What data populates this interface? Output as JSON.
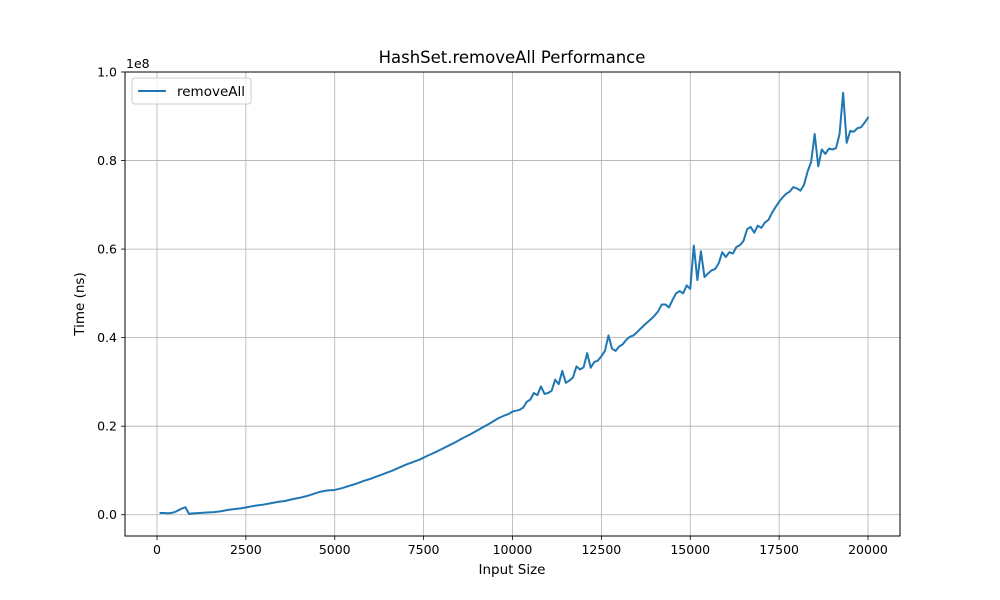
{
  "chart_data": {
    "type": "line",
    "title": "HashSet.removeAll Performance",
    "xlabel": "Input Size",
    "ylabel": "Time (ns)",
    "y_offset_text": "1e8",
    "xlim": [
      -900,
      20900
    ],
    "ylim": [
      -4800000,
      100000000
    ],
    "xticks": [
      0,
      2500,
      5000,
      7500,
      10000,
      12500,
      15000,
      17500,
      20000
    ],
    "xtick_labels": [
      "0",
      "2500",
      "5000",
      "7500",
      "10000",
      "12500",
      "15000",
      "17500",
      "20000"
    ],
    "yticks": [
      0,
      20000000,
      40000000,
      60000000,
      80000000,
      100000000
    ],
    "ytick_labels": [
      "0.0",
      "0.2",
      "0.4",
      "0.6",
      "0.8",
      "1.0"
    ],
    "grid": true,
    "legend_position": "upper left",
    "series": [
      {
        "name": "removeAll",
        "color": "#1f77b4",
        "x": [
          100,
          200,
          300,
          400,
          500,
          600,
          700,
          800,
          900,
          1000,
          1200,
          1400,
          1600,
          1800,
          2000,
          2200,
          2400,
          2600,
          2800,
          3000,
          3200,
          3400,
          3600,
          3800,
          4000,
          4200,
          4400,
          4600,
          4800,
          5000,
          5200,
          5400,
          5600,
          5800,
          6000,
          6200,
          6400,
          6600,
          6800,
          7000,
          7200,
          7400,
          7600,
          7800,
          8000,
          8200,
          8400,
          8600,
          8800,
          9000,
          9200,
          9400,
          9600,
          9800,
          9900,
          10000,
          10100,
          10200,
          10300,
          10400,
          10500,
          10600,
          10700,
          10800,
          10900,
          11000,
          11100,
          11200,
          11300,
          11400,
          11500,
          11600,
          11700,
          11800,
          11900,
          12000,
          12100,
          12200,
          12300,
          12400,
          12500,
          12600,
          12700,
          12800,
          12900,
          13000,
          13100,
          13200,
          13300,
          13400,
          13500,
          13600,
          13700,
          13800,
          13900,
          14000,
          14100,
          14200,
          14300,
          14400,
          14500,
          14600,
          14700,
          14800,
          14900,
          15000,
          15100,
          15200,
          15300,
          15400,
          15500,
          15600,
          15700,
          15800,
          15900,
          16000,
          16100,
          16200,
          16300,
          16400,
          16500,
          16600,
          16700,
          16800,
          16900,
          17000,
          17100,
          17200,
          17300,
          17400,
          17500,
          17600,
          17700,
          17800,
          17900,
          18000,
          18100,
          18200,
          18300,
          18400,
          18500,
          18600,
          18700,
          18800,
          18900,
          19000,
          19100,
          19200,
          19300,
          19400,
          19500,
          19600,
          19700,
          19800,
          19900,
          20000
        ],
        "y": [
          400000,
          400000,
          350000,
          400000,
          600000,
          1000000,
          1400000,
          1700000,
          200000,
          300000,
          400000,
          500000,
          600000,
          800000,
          1100000,
          1300000,
          1500000,
          1800000,
          2100000,
          2300000,
          2600000,
          2900000,
          3100000,
          3500000,
          3800000,
          4200000,
          4700000,
          5200000,
          5500000,
          5600000,
          6000000,
          6500000,
          7000000,
          7600000,
          8100000,
          8700000,
          9300000,
          9900000,
          10600000,
          11300000,
          11900000,
          12500000,
          13300000,
          14000000,
          14800000,
          15600000,
          16400000,
          17300000,
          18100000,
          19000000,
          19900000,
          20800000,
          21800000,
          22500000,
          22800000,
          23300000,
          23500000,
          23700000,
          24200000,
          25500000,
          26000000,
          27500000,
          27000000,
          29000000,
          27300000,
          27500000,
          28000000,
          30500000,
          29500000,
          32500000,
          29800000,
          30300000,
          31000000,
          33500000,
          32800000,
          33300000,
          36500000,
          33200000,
          34500000,
          34800000,
          35800000,
          37000000,
          40500000,
          37500000,
          37000000,
          38000000,
          38500000,
          39500000,
          40200000,
          40500000,
          41200000,
          42000000,
          42800000,
          43500000,
          44200000,
          45000000,
          46000000,
          47500000,
          47500000,
          46800000,
          48500000,
          50000000,
          50500000,
          50000000,
          51800000,
          51000000,
          60800000,
          53000000,
          59500000,
          53700000,
          54500000,
          55200000,
          55500000,
          56800000,
          59300000,
          58200000,
          59300000,
          59000000,
          60500000,
          60900000,
          61900000,
          64500000,
          65000000,
          63700000,
          65300000,
          64800000,
          66000000,
          66600000,
          68200000,
          69500000,
          70700000,
          71700000,
          72500000,
          73000000,
          74000000,
          73700000,
          73200000,
          74500000,
          77500000,
          79700000,
          86000000,
          78700000,
          82500000,
          81500000,
          82700000,
          82500000,
          82800000,
          86000000,
          95300000,
          84000000,
          86700000,
          86500000,
          87300000,
          87500000,
          88500000,
          89700000
        ]
      }
    ]
  }
}
